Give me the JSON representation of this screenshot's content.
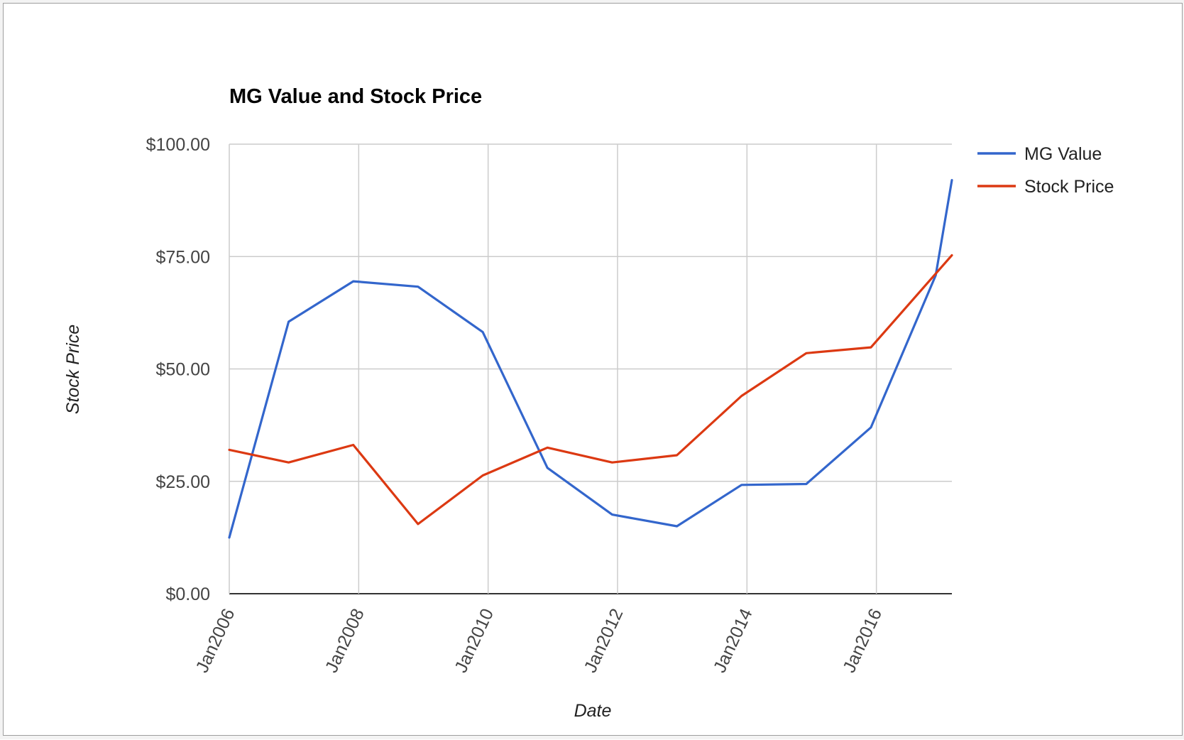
{
  "chart_data": {
    "type": "line",
    "title": "MG Value and Stock Price",
    "xlabel": "Date",
    "ylabel": "Stock Price",
    "x_ticks": [
      "Jan2006",
      "Jan2008",
      "Jan2010",
      "Jan2012",
      "Jan2014",
      "Jan2016"
    ],
    "y_ticks": [
      "$0.00",
      "$25.00",
      "$50.00",
      "$75.00",
      "$100.00"
    ],
    "y_tick_values": [
      0,
      25,
      50,
      75,
      100
    ],
    "ylim": [
      0,
      100
    ],
    "xlim": [
      "2006-01",
      "2017-03"
    ],
    "grid": true,
    "legend_position": "right",
    "x": [
      "2006-01",
      "2006-12",
      "2007-12",
      "2008-12",
      "2009-12",
      "2010-12",
      "2011-12",
      "2012-12",
      "2013-12",
      "2014-12",
      "2015-12",
      "2016-12",
      "2017-03"
    ],
    "series": [
      {
        "name": "MG Value",
        "color": "#3366cc",
        "values": [
          12.5,
          60.5,
          69.5,
          68.3,
          58.2,
          28.0,
          17.6,
          15.0,
          24.2,
          24.4,
          37.0,
          70.8,
          92.0
        ]
      },
      {
        "name": "Stock Price",
        "color": "#dc3912",
        "values": [
          32.0,
          29.2,
          33.1,
          15.5,
          26.3,
          32.5,
          29.2,
          30.8,
          44.0,
          53.5,
          54.8,
          null,
          75.3
        ]
      }
    ]
  }
}
